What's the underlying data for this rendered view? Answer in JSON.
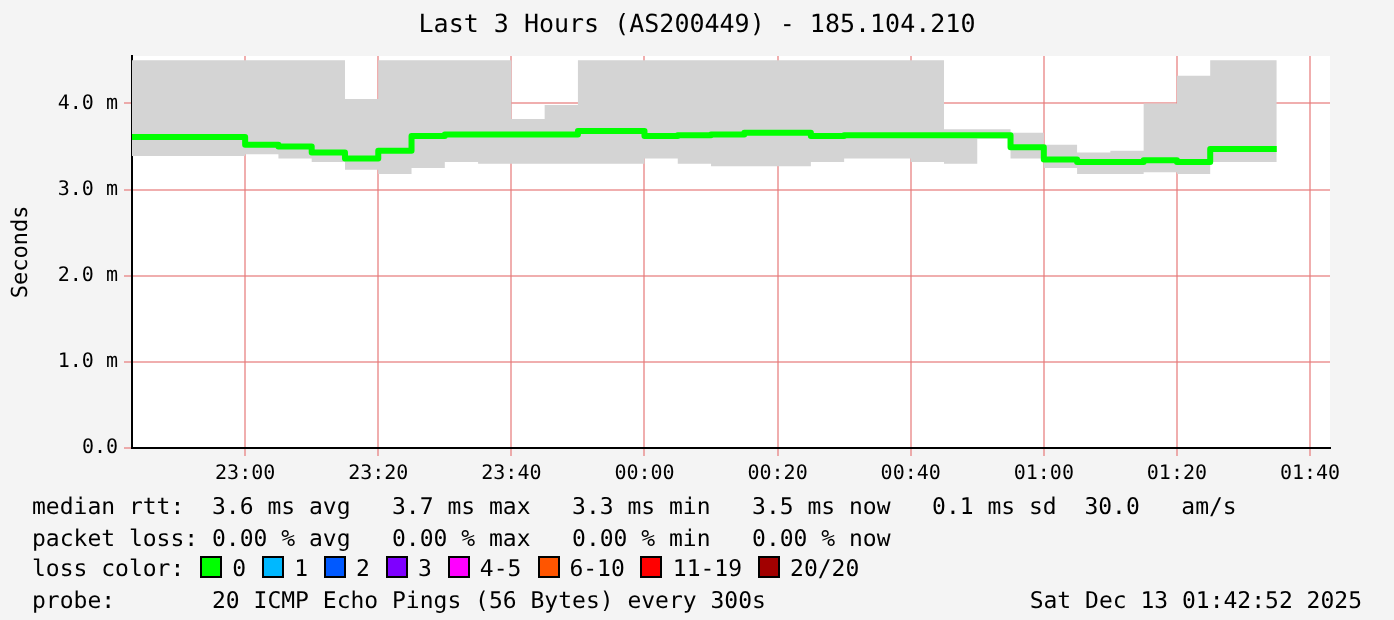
{
  "chart_data": {
    "type": "step",
    "title": "Last 3 Hours (AS200449) - 185.104.210",
    "ylabel": "Seconds",
    "x": [
      "2025-12-12T22:43",
      "2025-12-12T22:50",
      "2025-12-12T22:55",
      "2025-12-12T23:00",
      "2025-12-12T23:05",
      "2025-12-12T23:10",
      "2025-12-12T23:15",
      "2025-12-12T23:20",
      "2025-12-12T23:25",
      "2025-12-12T23:30",
      "2025-12-12T23:35",
      "2025-12-12T23:40",
      "2025-12-12T23:45",
      "2025-12-12T23:50",
      "2025-12-12T23:55",
      "2025-12-13T00:00",
      "2025-12-13T00:05",
      "2025-12-13T00:10",
      "2025-12-13T00:15",
      "2025-12-13T00:20",
      "2025-12-13T00:25",
      "2025-12-13T00:30",
      "2025-12-13T00:35",
      "2025-12-13T00:40",
      "2025-12-13T00:45",
      "2025-12-13T00:50",
      "2025-12-13T00:55",
      "2025-12-13T01:00",
      "2025-12-13T01:05",
      "2025-12-13T01:10",
      "2025-12-13T01:15",
      "2025-12-13T01:20",
      "2025-12-13T01:25",
      "2025-12-13T01:30",
      "2025-12-13T01:35"
    ],
    "series": [
      {
        "color": "#00ff00",
        "values": [
          3.64,
          3.61,
          3.61,
          3.61,
          3.52,
          3.5,
          3.43,
          3.36,
          3.45,
          3.62,
          3.64,
          3.64,
          3.64,
          3.64,
          3.68,
          3.68,
          3.62,
          3.63,
          3.64,
          3.66,
          3.66,
          3.62,
          3.63,
          3.63,
          3.63,
          3.63,
          3.63,
          3.49,
          3.35,
          3.32,
          3.32,
          3.34,
          3.32,
          3.47,
          3.47
        ],
        "lower": [
          3.41,
          3.39,
          3.39,
          3.39,
          3.41,
          3.36,
          3.32,
          3.23,
          3.18,
          3.25,
          3.32,
          3.3,
          3.3,
          3.3,
          3.3,
          3.3,
          3.36,
          3.3,
          3.27,
          3.27,
          3.27,
          3.32,
          3.36,
          3.36,
          3.32,
          3.3,
          3.59,
          3.36,
          3.25,
          3.18,
          3.18,
          3.2,
          3.18,
          3.32,
          3.32
        ],
        "upper": [
          4.5,
          4.5,
          4.5,
          4.5,
          4.5,
          4.5,
          4.5,
          4.05,
          4.5,
          4.5,
          4.5,
          4.5,
          3.82,
          3.98,
          4.5,
          4.5,
          4.5,
          4.5,
          4.5,
          4.5,
          4.5,
          4.5,
          4.5,
          4.5,
          4.5,
          3.7,
          3.7,
          3.66,
          3.52,
          3.43,
          3.45,
          4.0,
          4.32,
          4.5,
          4.5
        ]
      }
    ],
    "xlim": [
      "2025-12-12T22:43",
      "2025-12-13T01:43"
    ],
    "xticks": [
      {
        "value": "2025-12-12T23:00",
        "label": "23:00"
      },
      {
        "value": "2025-12-12T23:20",
        "label": "23:20"
      },
      {
        "value": "2025-12-12T23:40",
        "label": "23:40"
      },
      {
        "value": "2025-12-13T00:00",
        "label": "00:00"
      },
      {
        "value": "2025-12-13T00:20",
        "label": "00:20"
      },
      {
        "value": "2025-12-13T00:40",
        "label": "00:40"
      },
      {
        "value": "2025-12-13T01:00",
        "label": "01:00"
      },
      {
        "value": "2025-12-13T01:20",
        "label": "01:20"
      },
      {
        "value": "2025-12-13T01:40",
        "label": "01:40"
      }
    ],
    "ylim": [
      0,
      4.55
    ],
    "yticks": [
      {
        "value": 0,
        "label": "0.0"
      },
      {
        "value": 1,
        "label": "1.0 m"
      },
      {
        "value": 2,
        "label": "2.0 m"
      },
      {
        "value": 3,
        "label": "3.0 m"
      },
      {
        "value": 4,
        "label": "4.0 m"
      }
    ],
    "grid": true,
    "legend": false,
    "marker": "none",
    "line_style": "solid",
    "annotations": [
      "median rtt:  3.6 ms avg   3.7 ms max   3.3 ms min   3.5 ms now   0.1 ms sd  30.0   am/s",
      "packet loss: 0.00 % avg   0.00 % max   0.00 % min   0.00 % now",
      "loss color:",
      "0",
      "1",
      "2",
      "3",
      "4-5",
      "6-10",
      "11-19",
      "20/20",
      "probe:       20 ICMP Echo Pings (56 Bytes) every 300s",
      "Sat Dec 13 01:42:52 2025"
    ]
  }
}
